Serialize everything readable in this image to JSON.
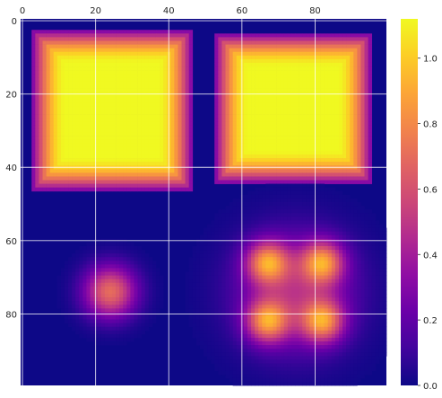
{
  "chart_data": {
    "type": "heatmap",
    "title": "",
    "xlabel": "",
    "ylabel": "",
    "colormap": "plasma",
    "grid": true,
    "grid_color": "#ffffff",
    "x_axis_position": "top",
    "shape": [
      100,
      100
    ],
    "xlim": [
      -0.5,
      99.5
    ],
    "ylim": [
      99.5,
      -0.5
    ],
    "x_ticks": [
      0,
      20,
      40,
      60,
      80
    ],
    "y_ticks": [
      0,
      20,
      40,
      60,
      80
    ],
    "x_tick_labels": [
      "0",
      "20",
      "40",
      "60",
      "80"
    ],
    "y_tick_labels": [
      "0",
      "20",
      "40",
      "60",
      "80"
    ],
    "vmin": 0.0,
    "vmax": 1.12,
    "colorbar_ticks": [
      0.0,
      0.2,
      0.4,
      0.6,
      0.8,
      1.0
    ],
    "colorbar_tick_labels": [
      "0.0",
      "0.2",
      "0.4",
      "0.6",
      "0.8",
      "1.0"
    ],
    "regions": [
      {
        "name": "top-left block",
        "kind": "block",
        "rows": [
          3,
          46
        ],
        "cols": [
          3,
          46
        ],
        "peak": 1.12,
        "ramp": 10
      },
      {
        "name": "top-right block",
        "kind": "block",
        "rows": [
          4,
          44
        ],
        "cols": [
          53,
          95
        ],
        "peak": 1.12,
        "ramp": 10
      },
      {
        "name": "bottom-left blob",
        "kind": "blob",
        "center": [
          74,
          24
        ],
        "peak": 0.7,
        "spread": 5
      },
      {
        "name": "bottom-right four blobs",
        "kind": "four-blobs",
        "centers": [
          [
            66,
            67
          ],
          [
            66,
            82
          ],
          [
            82,
            67
          ],
          [
            82,
            82
          ]
        ],
        "peak": 0.95,
        "spread": 4,
        "base": 0.42,
        "base_center": [
          74,
          74.5
        ],
        "base_spread": 11
      }
    ]
  }
}
